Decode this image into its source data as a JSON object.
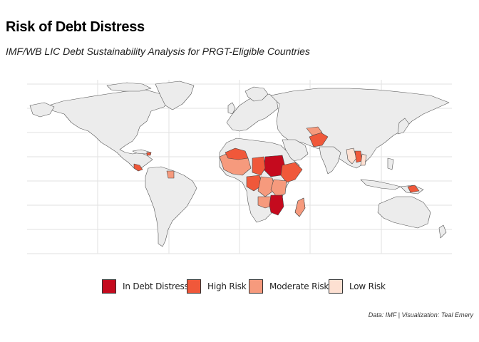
{
  "title": "Risk of Debt Distress",
  "subtitle": "IMF/WB LIC Debt Sustainability Analysis for PRGT-Eligible Countries",
  "caption": "Data: IMF | Visualization: Teal Emery",
  "colors": {
    "background": "#ffffff",
    "land_default": "#ececec",
    "border": "#555555",
    "grid": "#e2e2e2"
  },
  "legend": {
    "items": [
      {
        "label": "In Debt Distress",
        "color": "#c50a1e"
      },
      {
        "label": "High Risk",
        "color": "#f0583a"
      },
      {
        "label": "Moderate Risk",
        "color": "#f69a7d"
      },
      {
        "label": "Low Risk",
        "color": "#fde0d2"
      }
    ]
  },
  "risk_regions": [
    {
      "region": "Central America",
      "risk": "High Risk"
    },
    {
      "region": "Haiti",
      "risk": "High Risk"
    },
    {
      "region": "Venezuela area",
      "risk": "Moderate Risk"
    },
    {
      "region": "West Africa",
      "risk": "Moderate Risk"
    },
    {
      "region": "Sahel",
      "risk": "High Risk"
    },
    {
      "region": "Sudan / South Sudan",
      "risk": "In Debt Distress"
    },
    {
      "region": "Ethiopia / Somalia",
      "risk": "High Risk"
    },
    {
      "region": "Central Africa",
      "risk": "High Risk"
    },
    {
      "region": "East Africa",
      "risk": "Moderate Risk"
    },
    {
      "region": "Mozambique / Malawi / Zimbabwe",
      "risk": "In Debt Distress"
    },
    {
      "region": "Madagascar",
      "risk": "Moderate Risk"
    },
    {
      "region": "Afghanistan",
      "risk": "High Risk"
    },
    {
      "region": "Central Asia",
      "risk": "Moderate Risk"
    },
    {
      "region": "South-East Asia",
      "risk": "Low Risk"
    },
    {
      "region": "Laos",
      "risk": "High Risk"
    },
    {
      "region": "Papua New Guinea",
      "risk": "High Risk"
    }
  ]
}
